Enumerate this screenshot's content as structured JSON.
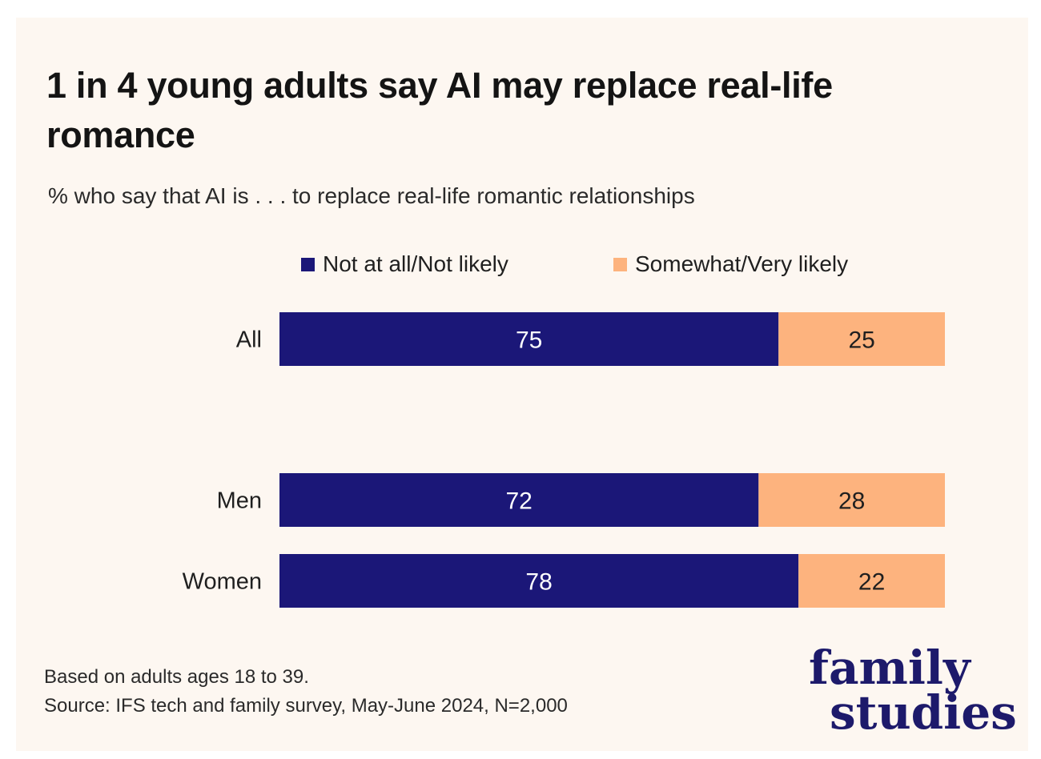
{
  "title": "1 in 4 young adults say AI may replace real-life romance",
  "subtitle": "% who say that AI is . . . to replace real-life romantic relationships",
  "colors": {
    "not_likely": "#1b1778",
    "likely": "#fdb37e",
    "background": "#fdf7f1"
  },
  "chart_data": {
    "type": "bar",
    "orientation": "horizontal",
    "stacked": true,
    "categories": [
      "All",
      "Men",
      "Women"
    ],
    "series": [
      {
        "name": "Not at all/Not likely",
        "values": [
          75,
          72,
          78
        ]
      },
      {
        "name": "Somewhat/Very likely",
        "values": [
          25,
          28,
          22
        ]
      }
    ],
    "xlim": [
      0,
      100
    ],
    "grid": false,
    "legend_position": "top"
  },
  "footnote": {
    "line1": "Based on adults ages 18 to 39.",
    "line2": "Source: IFS tech and family survey, May-June 2024, N=2,000"
  },
  "logo": {
    "line1": "family",
    "line2": "studies"
  }
}
